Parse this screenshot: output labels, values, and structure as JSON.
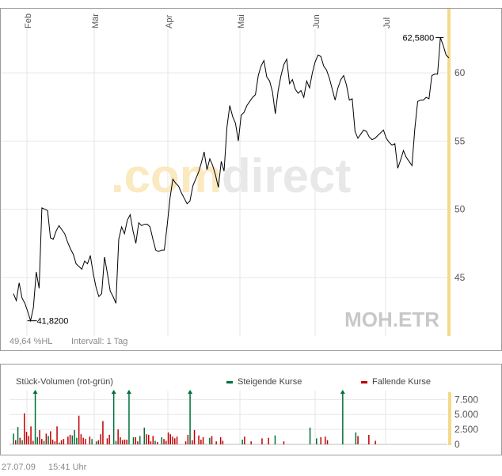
{
  "watermark": {
    "part1": ".com",
    "part2": "direct"
  },
  "symbol": "MOH.ETR",
  "footer": {
    "range_pct": "49,64 %HL",
    "interval": "Intervall: 1 Tag"
  },
  "timestamp": {
    "date": "27.07.09",
    "time": "15:41 Uhr"
  },
  "colors": {
    "line": "#000000",
    "grid": "#e6e6e6",
    "highlight": "#f5d98a",
    "up": "#00703c",
    "down": "#c00000",
    "watermark_orange": "#fbe9c0",
    "watermark_gray": "#e8e8e8"
  },
  "chart_data": [
    {
      "type": "line",
      "x_axis": {
        "type": "date",
        "labels": [
          "Feb",
          "Mär",
          "Apr",
          "Mai",
          "Jun",
          "Jul"
        ]
      },
      "y_axis": {
        "ticks": [
          45,
          50,
          55,
          60
        ],
        "tick_labels": [
          "45",
          "50",
          "55",
          "60"
        ],
        "range": [
          40.7,
          64.7
        ],
        "position": "right"
      },
      "grid": true,
      "series": [
        {
          "values": [
            43.8,
            43.3,
            44.6,
            43.5,
            43.1,
            42.5,
            41.82,
            42.8,
            45.4,
            44.2,
            50.1,
            50.0,
            49.9,
            47.9,
            47.8,
            48.4,
            48.8,
            48.5,
            48.2,
            47.6,
            47.1,
            46.7,
            46.0,
            45.8,
            45.6,
            46.2,
            46.0,
            46.6,
            45.3,
            44.3,
            43.6,
            43.8,
            46.5,
            45.3,
            44.0,
            43.6,
            43.1,
            47.8,
            48.7,
            48.2,
            49.2,
            49.6,
            48.4,
            47.5,
            49.0,
            48.8,
            48.9,
            48.9,
            48.7,
            47.8,
            47.0,
            46.9,
            47.0,
            47.0,
            48.8,
            50.8,
            52.2,
            51.9,
            51.7,
            51.2,
            50.8,
            50.4,
            50.6,
            51.7,
            52.2,
            52.7,
            53.4,
            54.2,
            52.9,
            53.7,
            53.2,
            52.5,
            51.6,
            53.5,
            52.8,
            56.0,
            57.6,
            56.8,
            56.3,
            55.0,
            56.9,
            57.1,
            57.6,
            57.9,
            58.2,
            58.4,
            59.8,
            60.5,
            60.9,
            59.7,
            59.4,
            58.6,
            57.0,
            58.7,
            59.8,
            60.6,
            61.0,
            59.2,
            59.5,
            58.8,
            58.5,
            58.7,
            58.2,
            59.4,
            58.9,
            60.0,
            60.8,
            61.3,
            61.2,
            60.5,
            60.2,
            59.6,
            58.8,
            58.0,
            58.9,
            59.5,
            59.8,
            59.1,
            58.0,
            58.1,
            55.7,
            55.2,
            55.5,
            55.8,
            55.7,
            55.3,
            55.1,
            55.2,
            55.4,
            55.6,
            55.8,
            55.2,
            54.9,
            54.7,
            54.8,
            53.0,
            53.6,
            54.3,
            53.8,
            53.5,
            53.2,
            55.9,
            57.9,
            58.0,
            58.0,
            58.2,
            58.1,
            59.8,
            59.9,
            59.9,
            62.58,
            62.0,
            61.3,
            61.1
          ]
        }
      ],
      "annotations": [
        {
          "label": "62,5800",
          "value": 62.58
        },
        {
          "label": "41,8200",
          "value": 41.82
        }
      ]
    },
    {
      "type": "bar",
      "title": "Stück-Volumen (rot-grün)",
      "legend": {
        "position": "top",
        "entries": [
          "Steigende Kurse",
          "Fallende Kurse"
        ]
      },
      "y_axis": {
        "ticks": [
          0,
          2500,
          5000,
          7500
        ],
        "tick_labels": [
          "0",
          "2.500",
          "5.000",
          "7.500"
        ],
        "range": [
          0,
          9000
        ],
        "position": "right"
      },
      "grid": true,
      "series": [
        {
          "name": "Steigende Kurse",
          "values": [
            1800,
            0,
            2900,
            0,
            700,
            0,
            0,
            0,
            0,
            0,
            9000,
            1200,
            0,
            0,
            600,
            0,
            1400,
            0,
            0,
            0,
            0,
            300,
            0,
            0,
            0,
            0,
            0,
            1500,
            2400,
            1100,
            0,
            0,
            0,
            0,
            0,
            0,
            900,
            0,
            500,
            0,
            0,
            0,
            0,
            0,
            0,
            0,
            9000,
            600,
            0,
            0,
            0,
            0,
            0,
            9000,
            0,
            1200,
            0,
            0,
            1400,
            0,
            2800,
            0,
            0,
            0,
            0,
            600,
            0,
            0,
            1200,
            0,
            0,
            0,
            0,
            0,
            0,
            0,
            0,
            0,
            0,
            0,
            0,
            9000,
            0,
            0,
            0,
            0,
            0,
            0,
            0,
            0,
            1100,
            0,
            0,
            0,
            0,
            0,
            0,
            0,
            0,
            0,
            0,
            0,
            0,
            0,
            0,
            800,
            0,
            0,
            0,
            0,
            0,
            0,
            0,
            0,
            0,
            0,
            0,
            0,
            0,
            0,
            1500,
            0,
            0,
            0,
            0,
            0,
            0,
            0,
            0,
            0,
            0,
            0,
            0,
            0,
            0,
            0,
            2800,
            0,
            0,
            1000,
            0,
            0,
            0,
            0,
            0,
            0,
            0,
            0,
            0,
            0,
            0,
            9000,
            0,
            0,
            0,
            0,
            0,
            2000,
            0,
            0,
            0,
            0,
            0,
            0,
            0,
            0,
            0,
            0,
            0,
            0,
            0,
            0,
            0,
            0,
            0,
            0,
            0,
            0,
            0,
            0,
            0,
            0,
            0,
            0,
            0,
            0,
            0,
            0,
            0,
            0,
            0,
            0,
            0,
            0
          ]
        },
        {
          "name": "Fallende Kurse",
          "values": [
            0,
            700,
            0,
            1100,
            0,
            5200,
            2100,
            1400,
            3000,
            600,
            0,
            0,
            2400,
            900,
            0,
            1800,
            0,
            2200,
            800,
            500,
            3000,
            0,
            700,
            900,
            0,
            1300,
            1600,
            0,
            0,
            0,
            4800,
            1700,
            1100,
            900,
            0,
            1300,
            0,
            0,
            0,
            700,
            1700,
            3900,
            0,
            1000,
            1600,
            0,
            0,
            0,
            2500,
            1200,
            700,
            800,
            800,
            0,
            0,
            0,
            1200,
            500,
            0,
            0,
            0,
            1700,
            1600,
            500,
            1400,
            0,
            400,
            0,
            0,
            900,
            600,
            2000,
            1700,
            1300,
            1000,
            1300,
            0,
            0,
            0,
            500,
            1600,
            0,
            700,
            2400,
            0,
            1500,
            800,
            1200,
            0,
            0,
            0,
            1400,
            0,
            500,
            0,
            1200,
            600,
            0,
            0,
            0,
            0,
            0,
            0,
            0,
            0,
            0,
            1300,
            0,
            0,
            500,
            0,
            0,
            0,
            0,
            1000,
            0,
            0,
            1100,
            0,
            0,
            700,
            0,
            0,
            0,
            500,
            0,
            0,
            0,
            0,
            0,
            0,
            0,
            0,
            0,
            0,
            0,
            0,
            0,
            0,
            0,
            0,
            1200,
            0,
            1300,
            700,
            0,
            0,
            0,
            0,
            0,
            0,
            0,
            0,
            0,
            0,
            0,
            0,
            0,
            1400,
            0,
            0,
            0,
            0,
            1600,
            0,
            0,
            600,
            0,
            0,
            0,
            0,
            0,
            0,
            0,
            0,
            0,
            0,
            0,
            0,
            0,
            0,
            0,
            0,
            0,
            0,
            0,
            0,
            0,
            0,
            0,
            0,
            0,
            0,
            0,
            0,
            0,
            0,
            0,
            0,
            0
          ]
        }
      ]
    }
  ]
}
